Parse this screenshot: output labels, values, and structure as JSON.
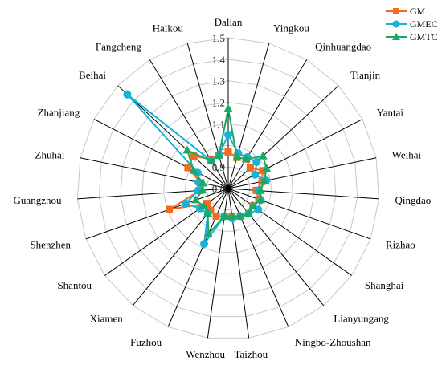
{
  "chart_data": {
    "type": "radar",
    "categories": [
      "Dalian",
      "Yingkou",
      "Qinhuangdao",
      "Tianjin",
      "Yantai",
      "Weihai",
      "Qingdao",
      "Rizhao",
      "Shanghai",
      "Lianyungang",
      "Ningbo-Zhoushan",
      "Taizhou",
      "Wenzhou",
      "Fuzhou",
      "Xiamen",
      "Shantou",
      "Shenzhen",
      "Guangzhou",
      "Zhuhai",
      "Zhanjiang",
      "Beihai",
      "Fangcheng",
      "Haikou"
    ],
    "r_ticks": [
      "0.8",
      "0.9",
      "1",
      "1.1",
      "1.2",
      "1.3",
      "1.4",
      "1.5"
    ],
    "r_range": [
      0.8,
      1.5
    ],
    "grid": true,
    "legend_position": "top-right",
    "series": [
      {
        "name": "GM",
        "color": "#f26b21",
        "marker": "square",
        "values": [
          0.97,
          0.95,
          0.96,
          0.94,
          0.98,
          0.96,
          0.93,
          0.95,
          0.94,
          0.95,
          0.94,
          0.93,
          0.93,
          0.94,
          0.93,
          0.92,
          1.09,
          0.93,
          0.93,
          1.01,
          1.02,
          0.96,
          0.96
        ]
      },
      {
        "name": "GMEC",
        "color": "#17b3d6",
        "marker": "circle",
        "values": [
          1.05,
          0.97,
          0.97,
          0.98,
          0.94,
          0.98,
          0.94,
          0.96,
          0.97,
          0.95,
          0.94,
          0.94,
          0.93,
          1.08,
          0.95,
          0.96,
          1.01,
          0.94,
          0.94,
          0.96,
          1.44,
          0.95,
          0.96
        ]
      },
      {
        "name": "GMTC",
        "color": "#1aa865",
        "marker": "triangle",
        "values": [
          1.17,
          0.95,
          0.96,
          1.02,
          1.0,
          0.97,
          0.95,
          0.96,
          0.94,
          0.95,
          0.94,
          0.93,
          0.93,
          1.03,
          0.95,
          0.94,
          0.96,
          0.92,
          0.92,
          0.98,
          1.06,
          0.95,
          0.96
        ]
      }
    ]
  }
}
